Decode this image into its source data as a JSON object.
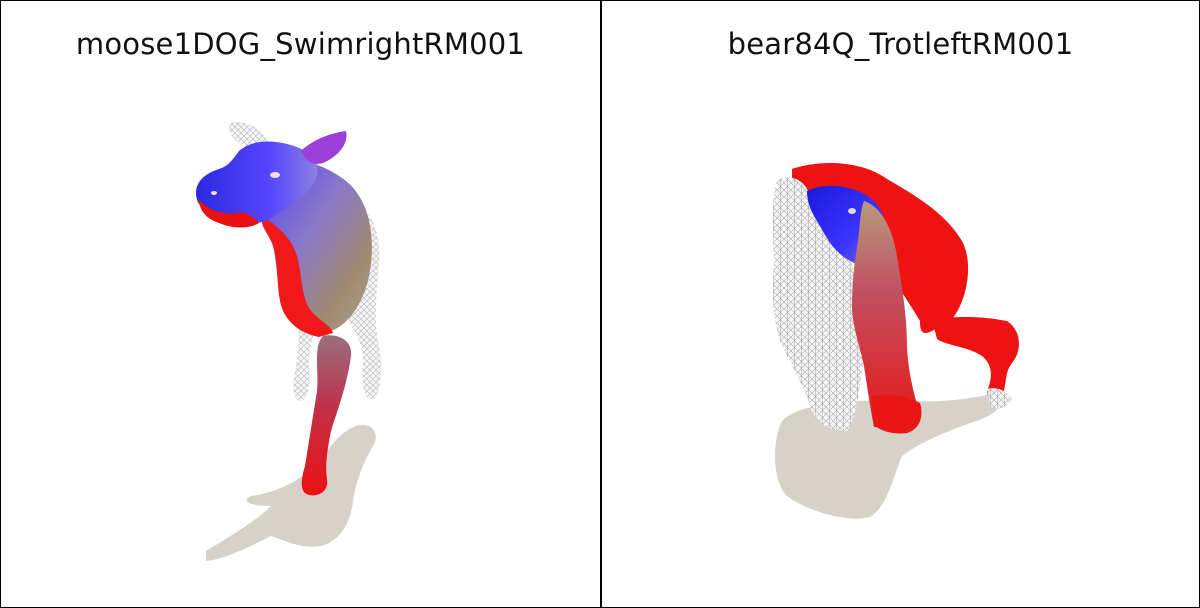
{
  "panels": [
    {
      "title": "moose1DOG_SwimrightRM001",
      "subject": "moose"
    },
    {
      "title": "bear84Q_TrotleftRM001",
      "subject": "bear"
    }
  ],
  "colors": {
    "background": "#ffffff",
    "border": "#000000",
    "shadow": "#d6d2c8",
    "mesh_red": "#ff1a1a",
    "mesh_blue": "#3a2cff",
    "mesh_purple": "#9b3fd8",
    "wireframe": "#cfcfcf"
  }
}
